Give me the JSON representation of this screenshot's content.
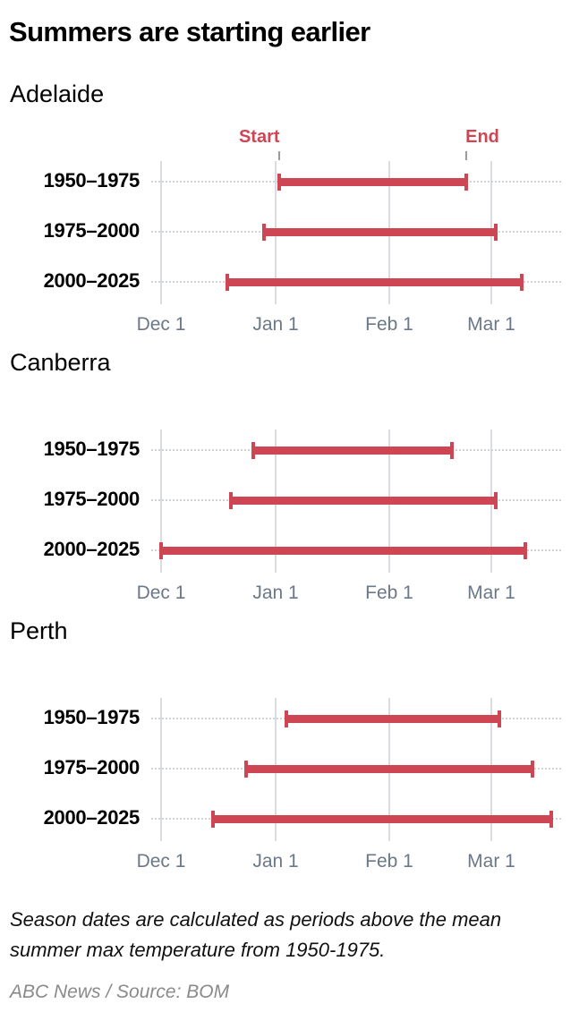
{
  "title": "Summers are starting earlier",
  "annotations": {
    "start_label": "Start",
    "end_label": "End"
  },
  "axis": {
    "ticks": [
      "Dec 1",
      "Jan 1",
      "Feb 1",
      "Mar 1"
    ]
  },
  "colors": {
    "bar": "#ce4553",
    "grid": "#d9dde3",
    "axis_label": "#6b7888"
  },
  "panels": [
    {
      "city": "Adelaide",
      "rows": [
        {
          "label": "1950–1975",
          "start": "Jan 2",
          "end": "Feb 22"
        },
        {
          "label": "1975–2000",
          "start": "Dec 29",
          "end": "Mar 3"
        },
        {
          "label": "2000–2025",
          "start": "Dec 19",
          "end": "Mar 10"
        }
      ]
    },
    {
      "city": "Canberra",
      "rows": [
        {
          "label": "1950–1975",
          "start": "Dec 26",
          "end": "Feb 18"
        },
        {
          "label": "1975–2000",
          "start": "Dec 20",
          "end": "Mar 3"
        },
        {
          "label": "2000–2025",
          "start": "Dec 1",
          "end": "Mar 11"
        }
      ]
    },
    {
      "city": "Perth",
      "rows": [
        {
          "label": "1950–1975",
          "start": "Jan 4",
          "end": "Mar 4"
        },
        {
          "label": "1975–2000",
          "start": "Dec 24",
          "end": "Mar 13"
        },
        {
          "label": "2000–2025",
          "start": "Dec 15",
          "end": "Mar 18"
        }
      ]
    }
  ],
  "note": "Season dates are calculated as periods above the mean summer max temperature from 1950-1975.",
  "source": "ABC News / Source: BOM",
  "chart_data": [
    {
      "type": "bar",
      "subtype": "range (dumbbell/floating bar)",
      "title": "Adelaide",
      "categories": [
        "1950–1975",
        "1975–2000",
        "2000–2025"
      ],
      "series": [
        {
          "name": "Start (days after Dec 1)",
          "values": [
            32,
            28,
            18
          ]
        },
        {
          "name": "End (days after Dec 1)",
          "values": [
            83,
            91,
            98
          ]
        }
      ],
      "xlabel": "",
      "ylabel": "",
      "xticks": [
        "Dec 1",
        "Jan 1",
        "Feb 1",
        "Mar 1"
      ],
      "xlim_days_from_dec1": [
        0,
        110
      ],
      "annotations": [
        "Start",
        "End"
      ]
    },
    {
      "type": "bar",
      "subtype": "range (dumbbell/floating bar)",
      "title": "Canberra",
      "categories": [
        "1950–1975",
        "1975–2000",
        "2000–2025"
      ],
      "series": [
        {
          "name": "Start (days after Dec 1)",
          "values": [
            25,
            19,
            0
          ]
        },
        {
          "name": "End (days after Dec 1)",
          "values": [
            79,
            91,
            99
          ]
        }
      ],
      "xticks": [
        "Dec 1",
        "Jan 1",
        "Feb 1",
        "Mar 1"
      ],
      "xlim_days_from_dec1": [
        0,
        110
      ]
    },
    {
      "type": "bar",
      "subtype": "range (dumbbell/floating bar)",
      "title": "Perth",
      "categories": [
        "1950–1975",
        "1975–2000",
        "2000–2025"
      ],
      "series": [
        {
          "name": "Start (days after Dec 1)",
          "values": [
            34,
            23,
            14
          ]
        },
        {
          "name": "End (days after Dec 1)",
          "values": [
            92,
            101,
            106
          ]
        }
      ],
      "xticks": [
        "Dec 1",
        "Jan 1",
        "Feb 1",
        "Mar 1"
      ],
      "xlim_days_from_dec1": [
        0,
        110
      ]
    }
  ]
}
